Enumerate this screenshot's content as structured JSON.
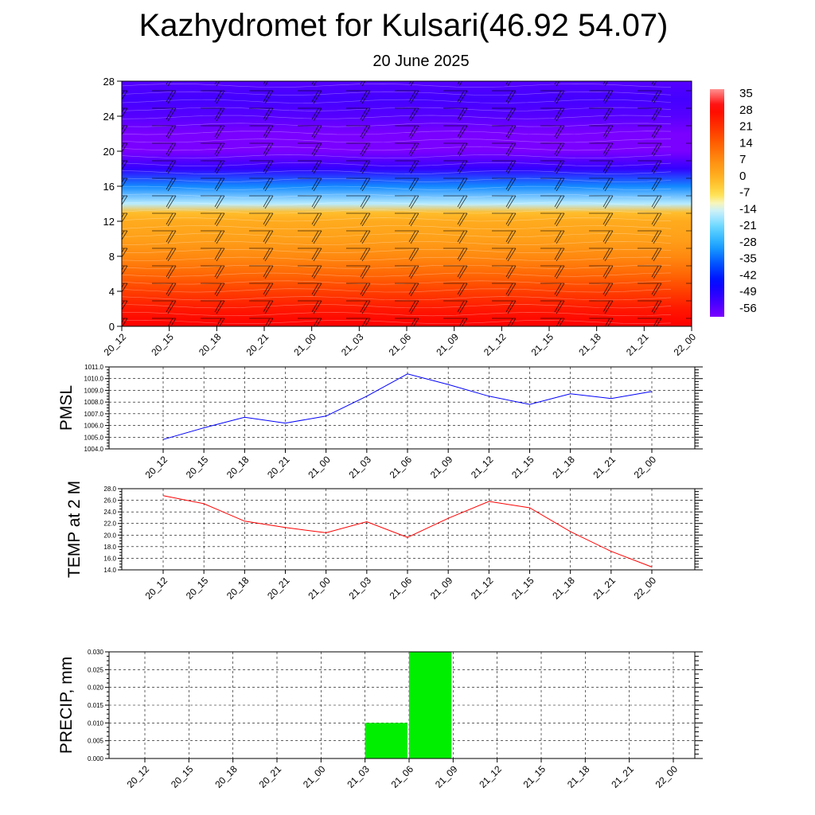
{
  "title": "Kazhydromet for Kulsari(46.92 54.07)",
  "subtitle": "20 June 2025",
  "time_labels": [
    "20_12",
    "20_15",
    "20_18",
    "20_21",
    "21_00",
    "21_03",
    "21_06",
    "21_09",
    "21_12",
    "21_15",
    "21_18",
    "21_21",
    "22_00"
  ],
  "colorbar": {
    "labels": [
      "35",
      "28",
      "21",
      "14",
      "7",
      "0",
      "-7",
      "-14",
      "-21",
      "-28",
      "-35",
      "-42",
      "-49",
      "-56"
    ]
  },
  "chart_data": [
    {
      "type": "heatmap",
      "title": "",
      "xlabel": "",
      "ylabel": "",
      "x": [
        "20_12",
        "20_15",
        "20_18",
        "20_21",
        "21_00",
        "21_03",
        "21_06",
        "21_09",
        "21_12",
        "21_15",
        "21_18",
        "21_21",
        "22_00"
      ],
      "y_ticks": [
        0,
        4,
        8,
        12,
        16,
        20,
        24,
        28
      ],
      "ylim": [
        0,
        28
      ],
      "profile_levels": [
        0,
        2,
        4,
        6,
        8,
        10,
        12,
        13,
        14,
        16,
        18,
        20,
        22,
        24,
        26,
        28
      ],
      "profile_values": [
        28,
        24,
        18,
        12,
        7,
        3,
        1,
        -2,
        -15,
        -30,
        -48,
        -56,
        -56,
        -52,
        -50,
        -52
      ],
      "color_scale": {
        "min": -56,
        "max": 35
      },
      "grid": false
    },
    {
      "type": "line",
      "title": "",
      "ylabel": "PMSL",
      "x": [
        "20_12",
        "20_15",
        "20_18",
        "20_21",
        "21_00",
        "21_03",
        "21_06",
        "21_09",
        "21_12",
        "21_15",
        "21_18",
        "21_21",
        "22_00"
      ],
      "series": [
        {
          "values": [
            1004.8,
            1005.8,
            1006.7,
            1006.2,
            1006.8,
            1008.5,
            1010.4,
            1009.5,
            1008.5,
            1007.8,
            1008.7,
            1008.3,
            1008.9
          ],
          "color": "#0000ff"
        }
      ],
      "ylim": [
        1004.0,
        1011.0
      ],
      "y_ticks": [
        "1004.0",
        "1005.0",
        "1006.0",
        "1007.0",
        "1008.0",
        "1009.0",
        "1010.0",
        "1011.0"
      ],
      "grid": true
    },
    {
      "type": "line",
      "title": "",
      "ylabel": "TEMP at 2 M",
      "x": [
        "20_12",
        "20_15",
        "20_18",
        "20_21",
        "21_00",
        "21_03",
        "21_06",
        "21_09",
        "21_12",
        "21_15",
        "21_18",
        "21_21",
        "22_00"
      ],
      "series": [
        {
          "values": [
            26.8,
            25.4,
            22.4,
            21.3,
            20.4,
            22.3,
            19.6,
            22.9,
            25.8,
            24.7,
            20.6,
            17.2,
            14.5
          ],
          "color": "#ff0000"
        }
      ],
      "ylim": [
        14.0,
        28.0
      ],
      "y_ticks": [
        "14.0",
        "16.0",
        "18.0",
        "20.0",
        "22.0",
        "24.0",
        "26.0",
        "28.0"
      ],
      "grid": true
    },
    {
      "type": "bar",
      "title": "",
      "ylabel": "PRECIP, mm",
      "categories": [
        "20_12",
        "20_15",
        "20_18",
        "20_21",
        "21_00",
        "21_03",
        "21_06",
        "21_09",
        "21_12",
        "21_15",
        "21_18",
        "21_21",
        "22_00"
      ],
      "values": [
        0,
        0,
        0,
        0,
        0,
        0,
        0.01,
        0.03,
        0,
        0,
        0,
        0,
        0
      ],
      "color": "#00ee00",
      "ylim": [
        0,
        0.03
      ],
      "y_ticks": [
        "0.000",
        "0.005",
        "0.010",
        "0.015",
        "0.020",
        "0.025",
        "0.030"
      ],
      "grid": true
    }
  ]
}
